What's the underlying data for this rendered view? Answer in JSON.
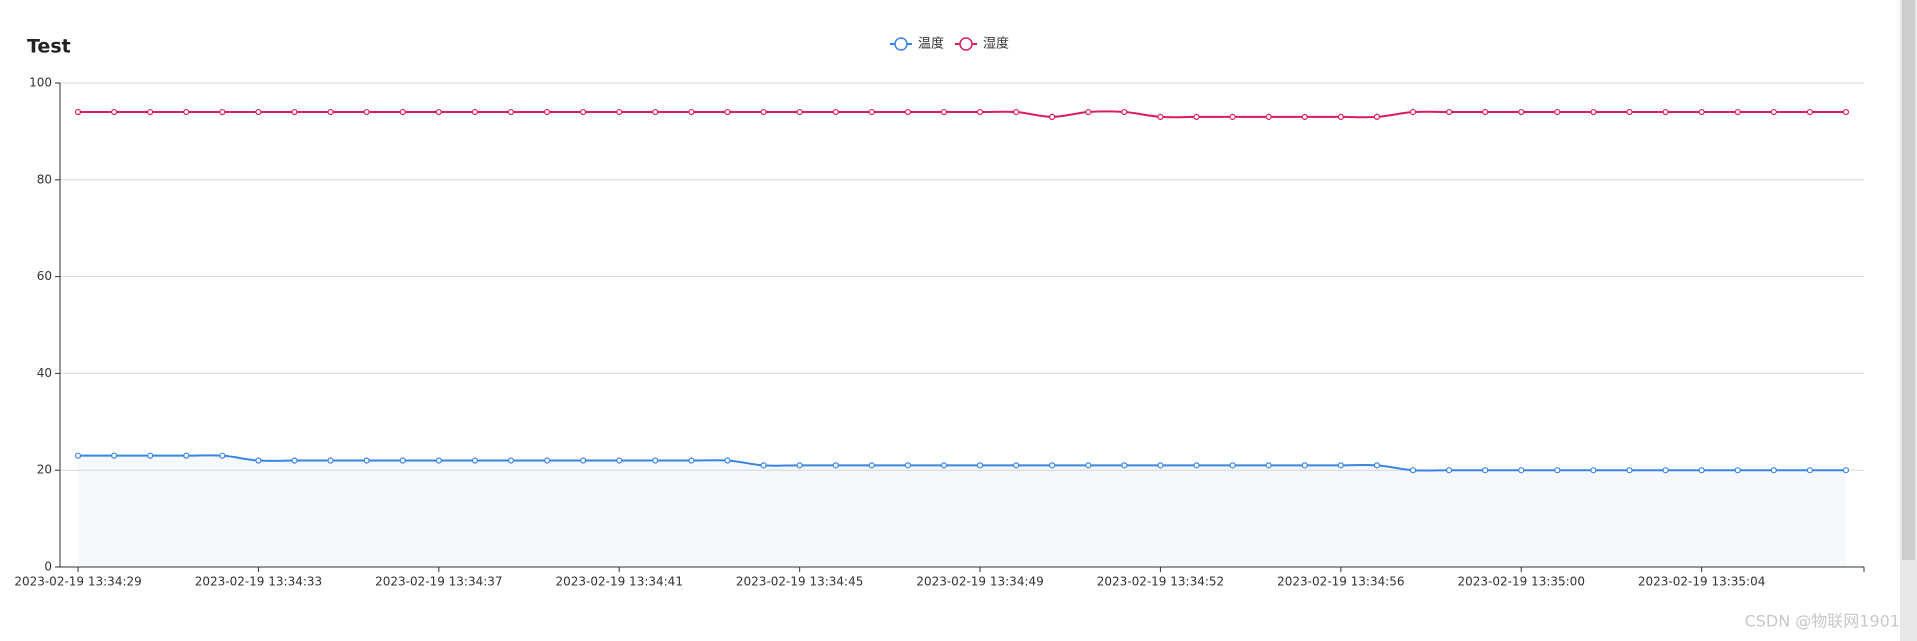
{
  "chart_data": {
    "type": "line",
    "title": "Test",
    "categories": [
      "2023-02-19 13:34:29",
      null,
      null,
      null,
      null,
      "2023-02-19 13:34:33",
      null,
      null,
      null,
      null,
      "2023-02-19 13:34:37",
      null,
      null,
      null,
      null,
      "2023-02-19 13:34:41",
      null,
      null,
      null,
      null,
      "2023-02-19 13:34:45",
      null,
      null,
      null,
      null,
      "2023-02-19 13:34:49",
      null,
      null,
      null,
      null,
      "2023-02-19 13:34:52",
      null,
      null,
      null,
      null,
      "2023-02-19 13:34:56",
      null,
      null,
      null,
      null,
      "2023-02-19 13:35:00",
      null,
      null,
      null,
      null,
      "2023-02-19 13:35:04",
      null,
      null,
      null,
      null
    ],
    "series": [
      {
        "name": "温度",
        "color": "#3a84e8",
        "area": true,
        "values": [
          23,
          23,
          23,
          23,
          23,
          22,
          22,
          22,
          22,
          22,
          22,
          22,
          22,
          22,
          22,
          22,
          22,
          22,
          22,
          21,
          21,
          21,
          21,
          21,
          21,
          21,
          21,
          21,
          21,
          21,
          21,
          21,
          21,
          21,
          21,
          21,
          21,
          20,
          20,
          20,
          20,
          20,
          20,
          20,
          20,
          20,
          20,
          20,
          20,
          20
        ]
      },
      {
        "name": "湿度",
        "color": "#dc1c63",
        "area": false,
        "values": [
          94,
          94,
          94,
          94,
          94,
          94,
          94,
          94,
          94,
          94,
          94,
          94,
          94,
          94,
          94,
          94,
          94,
          94,
          94,
          94,
          94,
          94,
          94,
          94,
          94,
          94,
          94,
          93,
          94,
          94,
          93,
          93,
          93,
          93,
          93,
          93,
          93,
          94,
          94,
          94,
          94,
          94,
          94,
          94,
          94,
          94,
          94,
          94,
          94,
          94
        ]
      }
    ],
    "ylim": [
      0,
      100
    ],
    "yticks": [
      0,
      20,
      40,
      60,
      80,
      100
    ],
    "grid": true,
    "watermark": "CSDN @物联网1901"
  }
}
